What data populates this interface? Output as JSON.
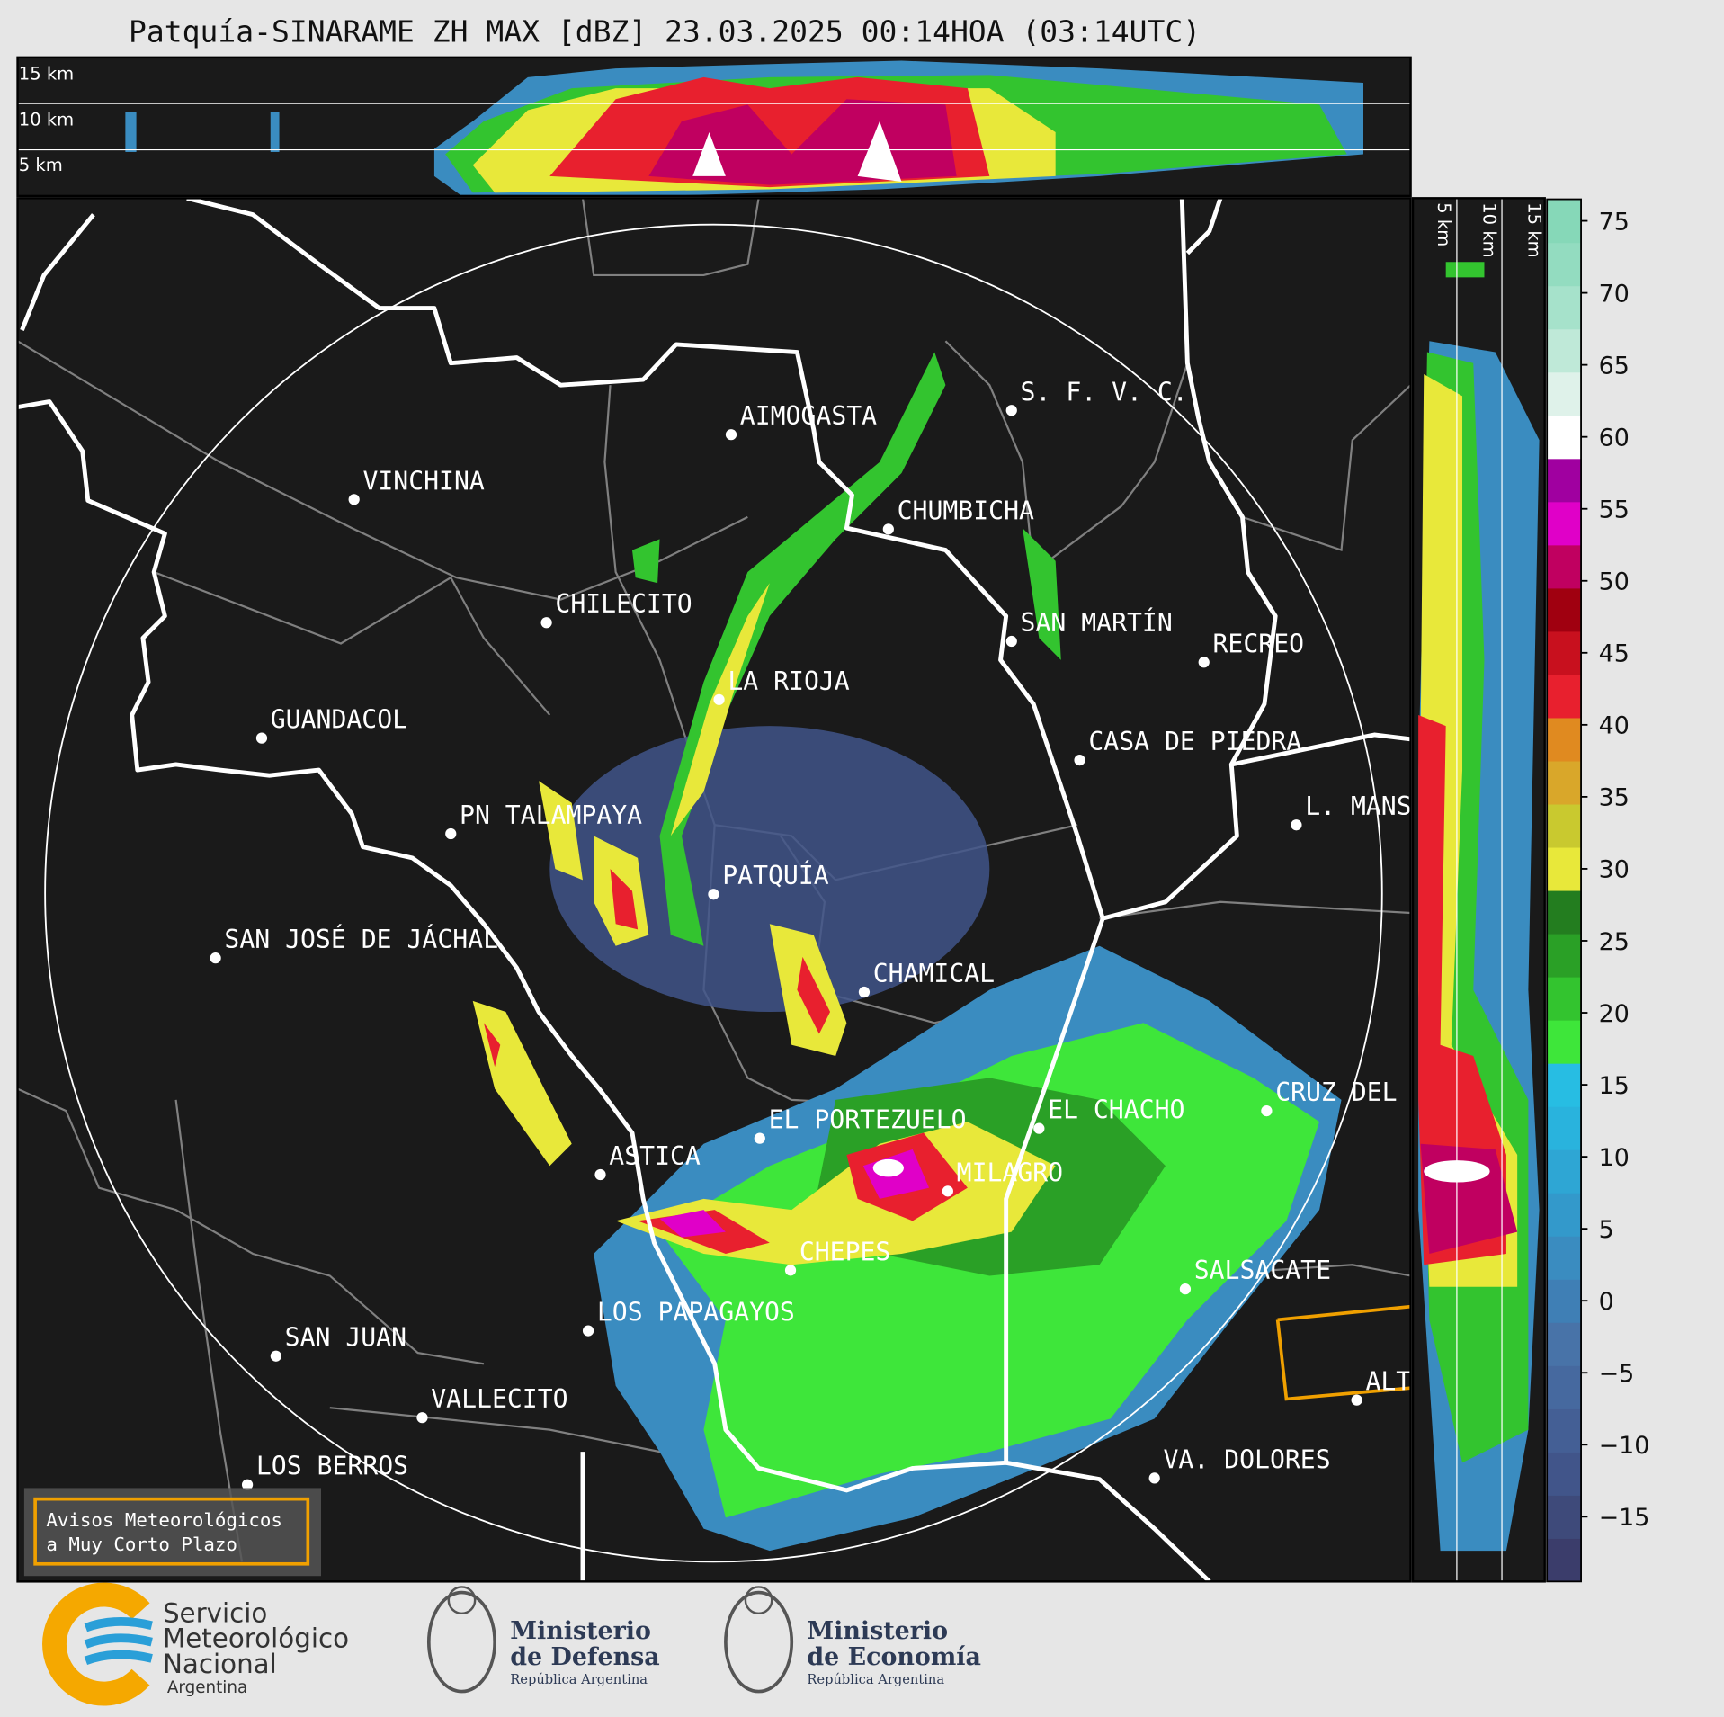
{
  "title": "Patquía-SINARAME ZH MAX [dBZ] 23.03.2025 00:14HOA (03:14UTC)",
  "top_panel": {
    "height_labels": [
      "15 km",
      "10 km",
      "5 km"
    ]
  },
  "side_panel": {
    "height_labels": [
      "5 km",
      "10 km",
      "15 km"
    ]
  },
  "cities": [
    {
      "name": "AIMOGASTA"
    },
    {
      "name": "S. F. V. C."
    },
    {
      "name": "VINCHINA"
    },
    {
      "name": "CHUMBICHA"
    },
    {
      "name": "CHILECITO"
    },
    {
      "name": "SAN MARTÍN"
    },
    {
      "name": "RECREO"
    },
    {
      "name": "LA RIOJA"
    },
    {
      "name": "GUANDACOL"
    },
    {
      "name": "CASA DE PIEDRA"
    },
    {
      "name": "L. MANS"
    },
    {
      "name": "PN TALAMPAYA"
    },
    {
      "name": "PATQUÍA"
    },
    {
      "name": "SAN JOSÉ DE JÁCHAL"
    },
    {
      "name": "CHAMICAL"
    },
    {
      "name": "CRUZ DEL"
    },
    {
      "name": "EL CHACHO"
    },
    {
      "name": "EL PORTEZUELO"
    },
    {
      "name": "ASTICA"
    },
    {
      "name": "MILAGRO"
    },
    {
      "name": "CHEPES"
    },
    {
      "name": "SALSACATE"
    },
    {
      "name": "LOS PAPAGAYOS"
    },
    {
      "name": "SAN JUAN"
    },
    {
      "name": "ALT"
    },
    {
      "name": "VALLECITO"
    },
    {
      "name": "VA. DOLORES"
    },
    {
      "name": "LOS BERROS"
    }
  ],
  "colorbar": {
    "clim": [
      -19.5,
      76.5
    ],
    "ticks": [
      {
        "value": -15,
        "label": "−15"
      },
      {
        "value": -10,
        "label": "−10"
      },
      {
        "value": -5,
        "label": "−5"
      },
      0,
      5,
      10,
      15,
      20,
      25,
      30,
      35,
      40,
      45,
      50,
      55,
      60,
      65,
      70,
      75
    ],
    "colors": [
      "#3b3d6b",
      "#3e4a7a",
      "#41558a",
      "#445f95",
      "#46699f",
      "#4873a8",
      "#3f7fb5",
      "#3a8cc0",
      "#3399cb",
      "#2ea6d4",
      "#29b3dd",
      "#27bde3",
      "#3ee63a",
      "#33c42f",
      "#2aa026",
      "#237d1f",
      "#e8e83a",
      "#c9c92f",
      "#d9a72a",
      "#e08a20",
      "#e8202e",
      "#c8101e",
      "#a00010",
      "#c00060",
      "#e000c8",
      "#a000a0",
      "#ffffff",
      "#dff2ea",
      "#bfe9d8",
      "#a6e2cb",
      "#93dcc0",
      "#86d8b8"
    ]
  },
  "watermark": {
    "lines": [
      "Avisos Meteorológicos",
      "a Muy Corto Plazo"
    ]
  },
  "logos": {
    "smn": {
      "lines": [
        "Servicio",
        "Meteorológico",
        "Nacional"
      ],
      "country": "Argentina"
    },
    "defensa": {
      "lines": [
        "Ministerio",
        "de Defensa"
      ],
      "country": "República Argentina"
    },
    "economia": {
      "lines": [
        "Ministerio",
        "de Economía"
      ],
      "country": "República Argentina"
    }
  }
}
